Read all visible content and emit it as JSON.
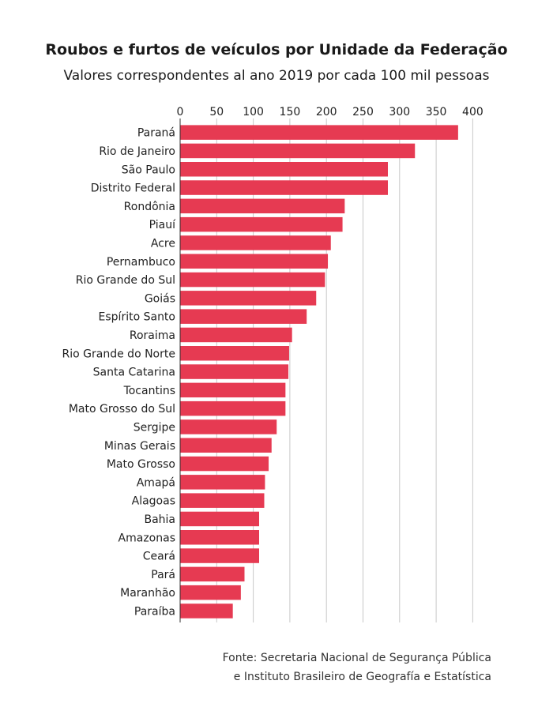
{
  "chart_data": {
    "type": "bar",
    "orientation": "horizontal",
    "title": "Roubos e furtos de veículos por Unidade da Federação",
    "subtitle": "Valores correspondentes al ano 2019 por cada 100 mil pessoas",
    "categories": [
      "Paraná",
      "Rio de Janeiro",
      "São Paulo",
      "Distrito Federal",
      "Rondônia",
      "Piauí",
      "Acre",
      "Pernambuco",
      "Rio Grande do Sul",
      "Goiás",
      "Espírito Santo",
      "Roraima",
      "Rio Grande do Norte",
      "Santa Catarina",
      "Tocantins",
      "Mato Grosso do Sul",
      "Sergipe",
      "Minas Gerais",
      "Mato Grosso",
      "Amapá",
      "Alagoas",
      "Bahia",
      "Amazonas",
      "Ceará",
      "Pará",
      "Maranhão",
      "Paraíba"
    ],
    "values": [
      380,
      321,
      284,
      284,
      225,
      222,
      206,
      202,
      198,
      186,
      173,
      153,
      149,
      148,
      144,
      144,
      132,
      125,
      121,
      116,
      115,
      108,
      108,
      108,
      88,
      83,
      72
    ],
    "xlim": [
      0,
      400
    ],
    "xticks": [
      0,
      50,
      100,
      150,
      200,
      250,
      300,
      350,
      400
    ],
    "axis_position": "top",
    "bar_color": "#e63a52",
    "grid": true,
    "legend": "none"
  },
  "source": {
    "line1": "Fonte: Secretaria Nacional de Segurança Pública",
    "line2": "e Instituto Brasileiro de Geografía e Estatística"
  }
}
